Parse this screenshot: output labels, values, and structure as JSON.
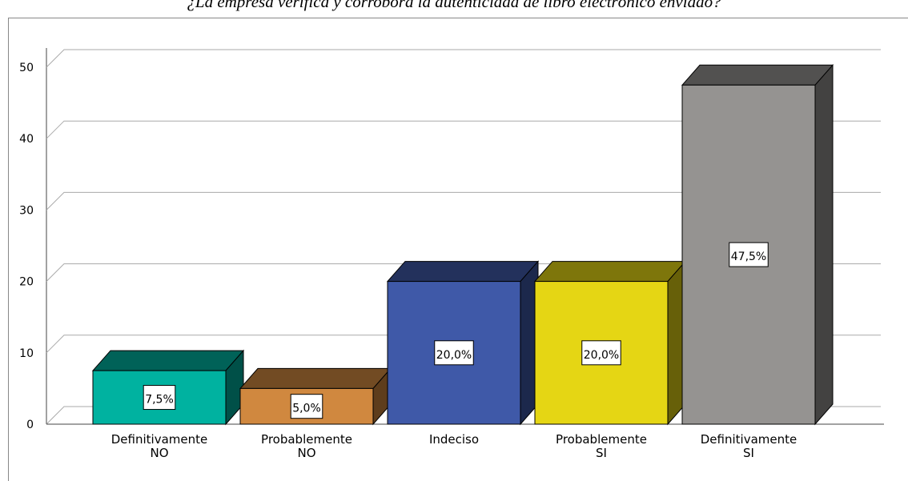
{
  "chart_data": {
    "type": "bar3d",
    "title": "¿La empresa verifica y corrobora la autenticidad de libro electrónico enviado?",
    "categories": [
      "Definitivamente\nNO",
      "Probablemente\nNO",
      "Indeciso",
      "Probablemente\nSI",
      "Definitivamente\nSI"
    ],
    "values": [
      7.5,
      5,
      20,
      20,
      47.5
    ],
    "value_labels": [
      "7,5%",
      "5,0%",
      "20,0%",
      "20,0%",
      "47,5%"
    ],
    "colors": [
      "#00b2a0",
      "#d0883f",
      "#3f59a8",
      "#e5d614",
      "#959391"
    ],
    "ylim": [
      0,
      50
    ],
    "yticks": [
      0,
      10,
      20,
      30,
      40,
      50
    ],
    "grid": true
  }
}
